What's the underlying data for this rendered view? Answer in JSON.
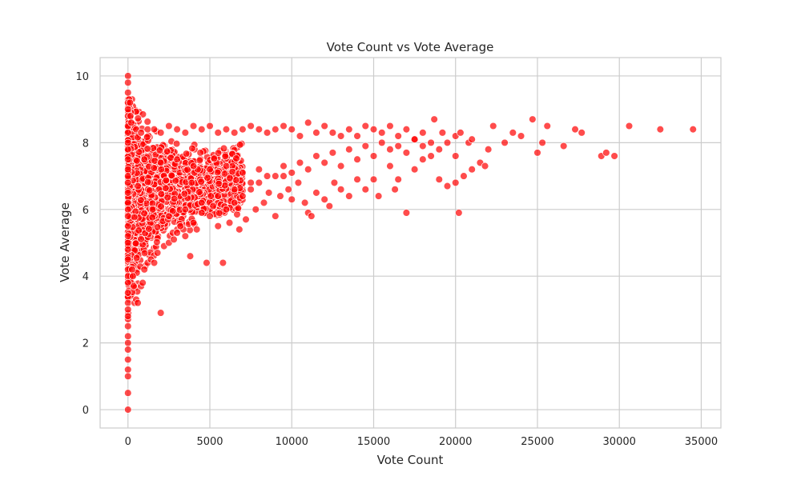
{
  "chart_data": {
    "type": "scatter",
    "title": "Vote Count vs Vote Average",
    "xlabel": "Vote Count",
    "ylabel": "Vote Average",
    "xlim": [
      -1700,
      36200
    ],
    "ylim": [
      -0.55,
      10.55
    ],
    "xticks": [
      0,
      5000,
      10000,
      15000,
      20000,
      25000,
      30000,
      35000
    ],
    "yticks": [
      0,
      2,
      4,
      6,
      8,
      10
    ],
    "grid": true,
    "legend": "none",
    "style": {
      "point_color": "#ff0000",
      "point_edge_color": "#ffffff",
      "point_alpha": 0.7,
      "grid_color": "#cccccc",
      "frame_color": "#cccccc"
    },
    "series": [
      {
        "points": [
          [
            0,
            10
          ],
          [
            0,
            9.8
          ],
          [
            0,
            9.5
          ],
          [
            0,
            9.2
          ],
          [
            0,
            9
          ],
          [
            0,
            8.8
          ],
          [
            0,
            8.5
          ],
          [
            0,
            8.3
          ],
          [
            0,
            8
          ],
          [
            0,
            7.8
          ],
          [
            0,
            7.5
          ],
          [
            0,
            7.2
          ],
          [
            0,
            7
          ],
          [
            0,
            6.8
          ],
          [
            0,
            6.5
          ],
          [
            0,
            6.2
          ],
          [
            0,
            6
          ],
          [
            0,
            5.8
          ],
          [
            0,
            5.5
          ],
          [
            0,
            5.2
          ],
          [
            0,
            5
          ],
          [
            0,
            4.8
          ],
          [
            0,
            4.5
          ],
          [
            0,
            4.2
          ],
          [
            0,
            4
          ],
          [
            0,
            3.8
          ],
          [
            0,
            3.5
          ],
          [
            0,
            3.2
          ],
          [
            0,
            3
          ],
          [
            0,
            2.8
          ],
          [
            0,
            2.5
          ],
          [
            0,
            2.2
          ],
          [
            0,
            2
          ],
          [
            0,
            1.8
          ],
          [
            0,
            1.5
          ],
          [
            0,
            1.2
          ],
          [
            0,
            1
          ],
          [
            0,
            0.5
          ],
          [
            0,
            0
          ],
          [
            120,
            9.2
          ],
          [
            150,
            8.8
          ],
          [
            200,
            8.6
          ],
          [
            250,
            4.2
          ],
          [
            300,
            4.0
          ],
          [
            350,
            3.7
          ],
          [
            400,
            3.2
          ],
          [
            500,
            3.3
          ],
          [
            600,
            3.2
          ],
          [
            800,
            3.7
          ],
          [
            900,
            3.8
          ],
          [
            1000,
            4.2
          ],
          [
            1200,
            4.4
          ],
          [
            1400,
            4.5
          ],
          [
            1600,
            4.4
          ],
          [
            1800,
            4.7
          ],
          [
            2000,
            2.9
          ],
          [
            2200,
            4.9
          ],
          [
            2500,
            5.0
          ],
          [
            2800,
            5.1
          ],
          [
            3000,
            5.3
          ],
          [
            3200,
            5.5
          ],
          [
            3500,
            5.2
          ],
          [
            3800,
            4.6
          ],
          [
            4000,
            5.6
          ],
          [
            4200,
            5.4
          ],
          [
            4500,
            5.9
          ],
          [
            4800,
            4.4
          ],
          [
            5000,
            5.8
          ],
          [
            5200,
            6.1
          ],
          [
            5500,
            5.5
          ],
          [
            5800,
            4.4
          ],
          [
            6000,
            6.0
          ],
          [
            6200,
            5.6
          ],
          [
            6500,
            6.2
          ],
          [
            6800,
            5.4
          ],
          [
            7000,
            6.4
          ],
          [
            7200,
            5.7
          ],
          [
            7500,
            6.6
          ],
          [
            7800,
            6.0
          ],
          [
            8000,
            6.8
          ],
          [
            8300,
            6.2
          ],
          [
            8600,
            6.5
          ],
          [
            9000,
            5.8
          ],
          [
            9300,
            6.4
          ],
          [
            9500,
            7.0
          ],
          [
            9800,
            6.6
          ],
          [
            10000,
            6.3
          ],
          [
            10400,
            6.8
          ],
          [
            10800,
            6.2
          ],
          [
            11000,
            5.9
          ],
          [
            11200,
            5.8
          ],
          [
            11500,
            6.5
          ],
          [
            12000,
            6.3
          ],
          [
            12300,
            6.1
          ],
          [
            12600,
            6.8
          ],
          [
            13000,
            6.6
          ],
          [
            13500,
            6.4
          ],
          [
            14000,
            6.9
          ],
          [
            14500,
            6.6
          ],
          [
            15000,
            6.9
          ],
          [
            15300,
            6.4
          ],
          [
            16000,
            7.3
          ],
          [
            16300,
            6.6
          ],
          [
            16500,
            6.9
          ],
          [
            17000,
            5.9
          ],
          [
            17500,
            7.2
          ],
          [
            18000,
            7.5
          ],
          [
            18500,
            7.6
          ],
          [
            19000,
            6.9
          ],
          [
            19500,
            6.7
          ],
          [
            20000,
            6.8
          ],
          [
            20200,
            5.9
          ],
          [
            20500,
            7.0
          ],
          [
            21000,
            7.2
          ],
          [
            21500,
            7.4
          ],
          [
            21800,
            7.3
          ],
          [
            22000,
            7.8
          ],
          [
            22300,
            8.5
          ],
          [
            23000,
            8.0
          ],
          [
            23500,
            8.3
          ],
          [
            24000,
            8.2
          ],
          [
            24700,
            8.7
          ],
          [
            25000,
            7.7
          ],
          [
            25300,
            8.0
          ],
          [
            25600,
            8.5
          ],
          [
            26600,
            7.9
          ],
          [
            27300,
            8.4
          ],
          [
            27700,
            8.3
          ],
          [
            28900,
            7.6
          ],
          [
            29200,
            7.7
          ],
          [
            29700,
            7.6
          ],
          [
            30600,
            8.5
          ],
          [
            32500,
            8.4
          ],
          [
            34500,
            8.4
          ],
          [
            500,
            8.4
          ],
          [
            800,
            8.3
          ],
          [
            1200,
            8.4
          ],
          [
            1600,
            8.4
          ],
          [
            2000,
            8.3
          ],
          [
            2500,
            8.5
          ],
          [
            3000,
            8.4
          ],
          [
            3500,
            8.3
          ],
          [
            4000,
            8.5
          ],
          [
            4500,
            8.4
          ],
          [
            5000,
            8.5
          ],
          [
            5500,
            8.3
          ],
          [
            6000,
            8.4
          ],
          [
            6500,
            8.3
          ],
          [
            7000,
            8.4
          ],
          [
            7500,
            8.5
          ],
          [
            8000,
            8.4
          ],
          [
            8500,
            8.3
          ],
          [
            9000,
            8.4
          ],
          [
            9500,
            8.5
          ],
          [
            10000,
            8.4
          ],
          [
            10500,
            8.2
          ],
          [
            11000,
            8.6
          ],
          [
            11500,
            8.3
          ],
          [
            12000,
            8.5
          ],
          [
            12500,
            8.3
          ],
          [
            13000,
            8.2
          ],
          [
            13500,
            8.4
          ],
          [
            14000,
            8.2
          ],
          [
            14500,
            8.5
          ],
          [
            15000,
            8.4
          ],
          [
            15500,
            8.3
          ],
          [
            16000,
            8.5
          ],
          [
            16500,
            8.2
          ],
          [
            17000,
            8.4
          ],
          [
            17500,
            8.1
          ],
          [
            18000,
            8.3
          ],
          [
            18500,
            8.0
          ],
          [
            18700,
            8.7
          ],
          [
            19200,
            8.3
          ],
          [
            19500,
            8.0
          ],
          [
            20000,
            8.2
          ],
          [
            20300,
            8.3
          ],
          [
            20800,
            8.0
          ],
          [
            21000,
            8.1
          ],
          [
            1000,
            7.5
          ],
          [
            2000,
            7.4
          ],
          [
            3000,
            7.5
          ],
          [
            4000,
            7.3
          ],
          [
            5000,
            7.2
          ],
          [
            6000,
            7.3
          ],
          [
            7000,
            7.1
          ],
          [
            8000,
            7.2
          ],
          [
            9000,
            7.0
          ],
          [
            10000,
            7.1
          ],
          [
            11000,
            7.2
          ],
          [
            12000,
            7.4
          ],
          [
            13000,
            7.3
          ],
          [
            14000,
            7.5
          ],
          [
            15000,
            7.6
          ],
          [
            16000,
            7.8
          ],
          [
            17000,
            7.7
          ],
          [
            18000,
            7.9
          ],
          [
            19000,
            7.8
          ],
          [
            20000,
            7.6
          ],
          [
            1500,
            6.0
          ],
          [
            2500,
            5.8
          ],
          [
            3500,
            6.0
          ],
          [
            4500,
            6.2
          ],
          [
            5500,
            6.4
          ],
          [
            6500,
            6.6
          ],
          [
            7500,
            6.8
          ],
          [
            8500,
            7.0
          ],
          [
            9500,
            7.3
          ],
          [
            10500,
            7.4
          ],
          [
            11500,
            7.6
          ],
          [
            12500,
            7.7
          ],
          [
            13500,
            7.8
          ],
          [
            14500,
            7.9
          ],
          [
            15500,
            8.0
          ],
          [
            16500,
            7.9
          ],
          [
            17500,
            8.1
          ]
        ]
      }
    ]
  }
}
